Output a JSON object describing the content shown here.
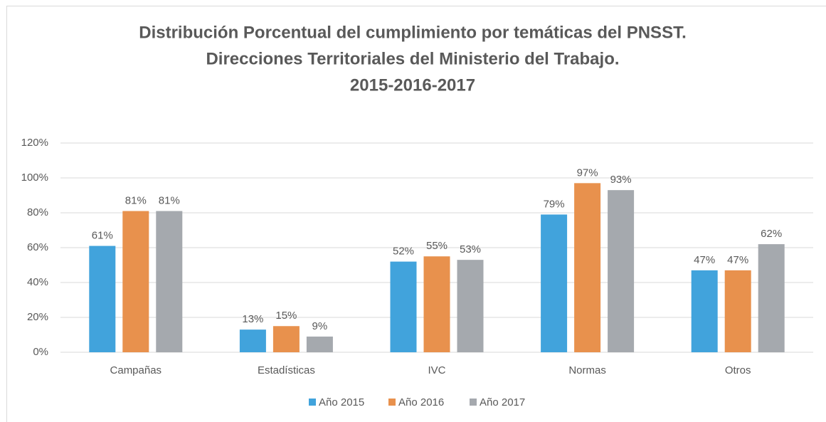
{
  "chart_data": {
    "type": "bar",
    "title": [
      "Distribución Porcentual del cumplimiento por temáticas del PNSST.",
      "Direcciones Territoriales del Ministerio del Trabajo.",
      "2015-2016-2017"
    ],
    "categories": [
      "Campañas",
      "Estadísticas",
      "IVC",
      "Normas",
      "Otros"
    ],
    "series": [
      {
        "name": "Año 2015",
        "color": "#41a3dc",
        "values": [
          61,
          13,
          52,
          79,
          47
        ],
        "value_labels": [
          "61%",
          "13%",
          "52%",
          "79%",
          "47%"
        ]
      },
      {
        "name": "Año 2016",
        "color": "#e8914d",
        "values": [
          81,
          15,
          55,
          97,
          47
        ],
        "value_labels": [
          "81%",
          "15%",
          "55%",
          "97%",
          "47%"
        ]
      },
      {
        "name": "Año 2017",
        "color": "#a5a9ae",
        "values": [
          81,
          9,
          53,
          93,
          62
        ],
        "value_labels": [
          "81%",
          "9%",
          "53%",
          "93%",
          "62%"
        ]
      }
    ],
    "ylim": [
      0,
      120
    ],
    "yticks": [
      {
        "value": 0,
        "label": "0%"
      },
      {
        "value": 20,
        "label": "20%"
      },
      {
        "value": 40,
        "label": "40%"
      },
      {
        "value": 60,
        "label": "60%"
      },
      {
        "value": 80,
        "label": "80%"
      },
      {
        "value": 100,
        "label": "100%"
      },
      {
        "value": 120,
        "label": "120%"
      }
    ],
    "grid": true,
    "legend": "bottom"
  }
}
